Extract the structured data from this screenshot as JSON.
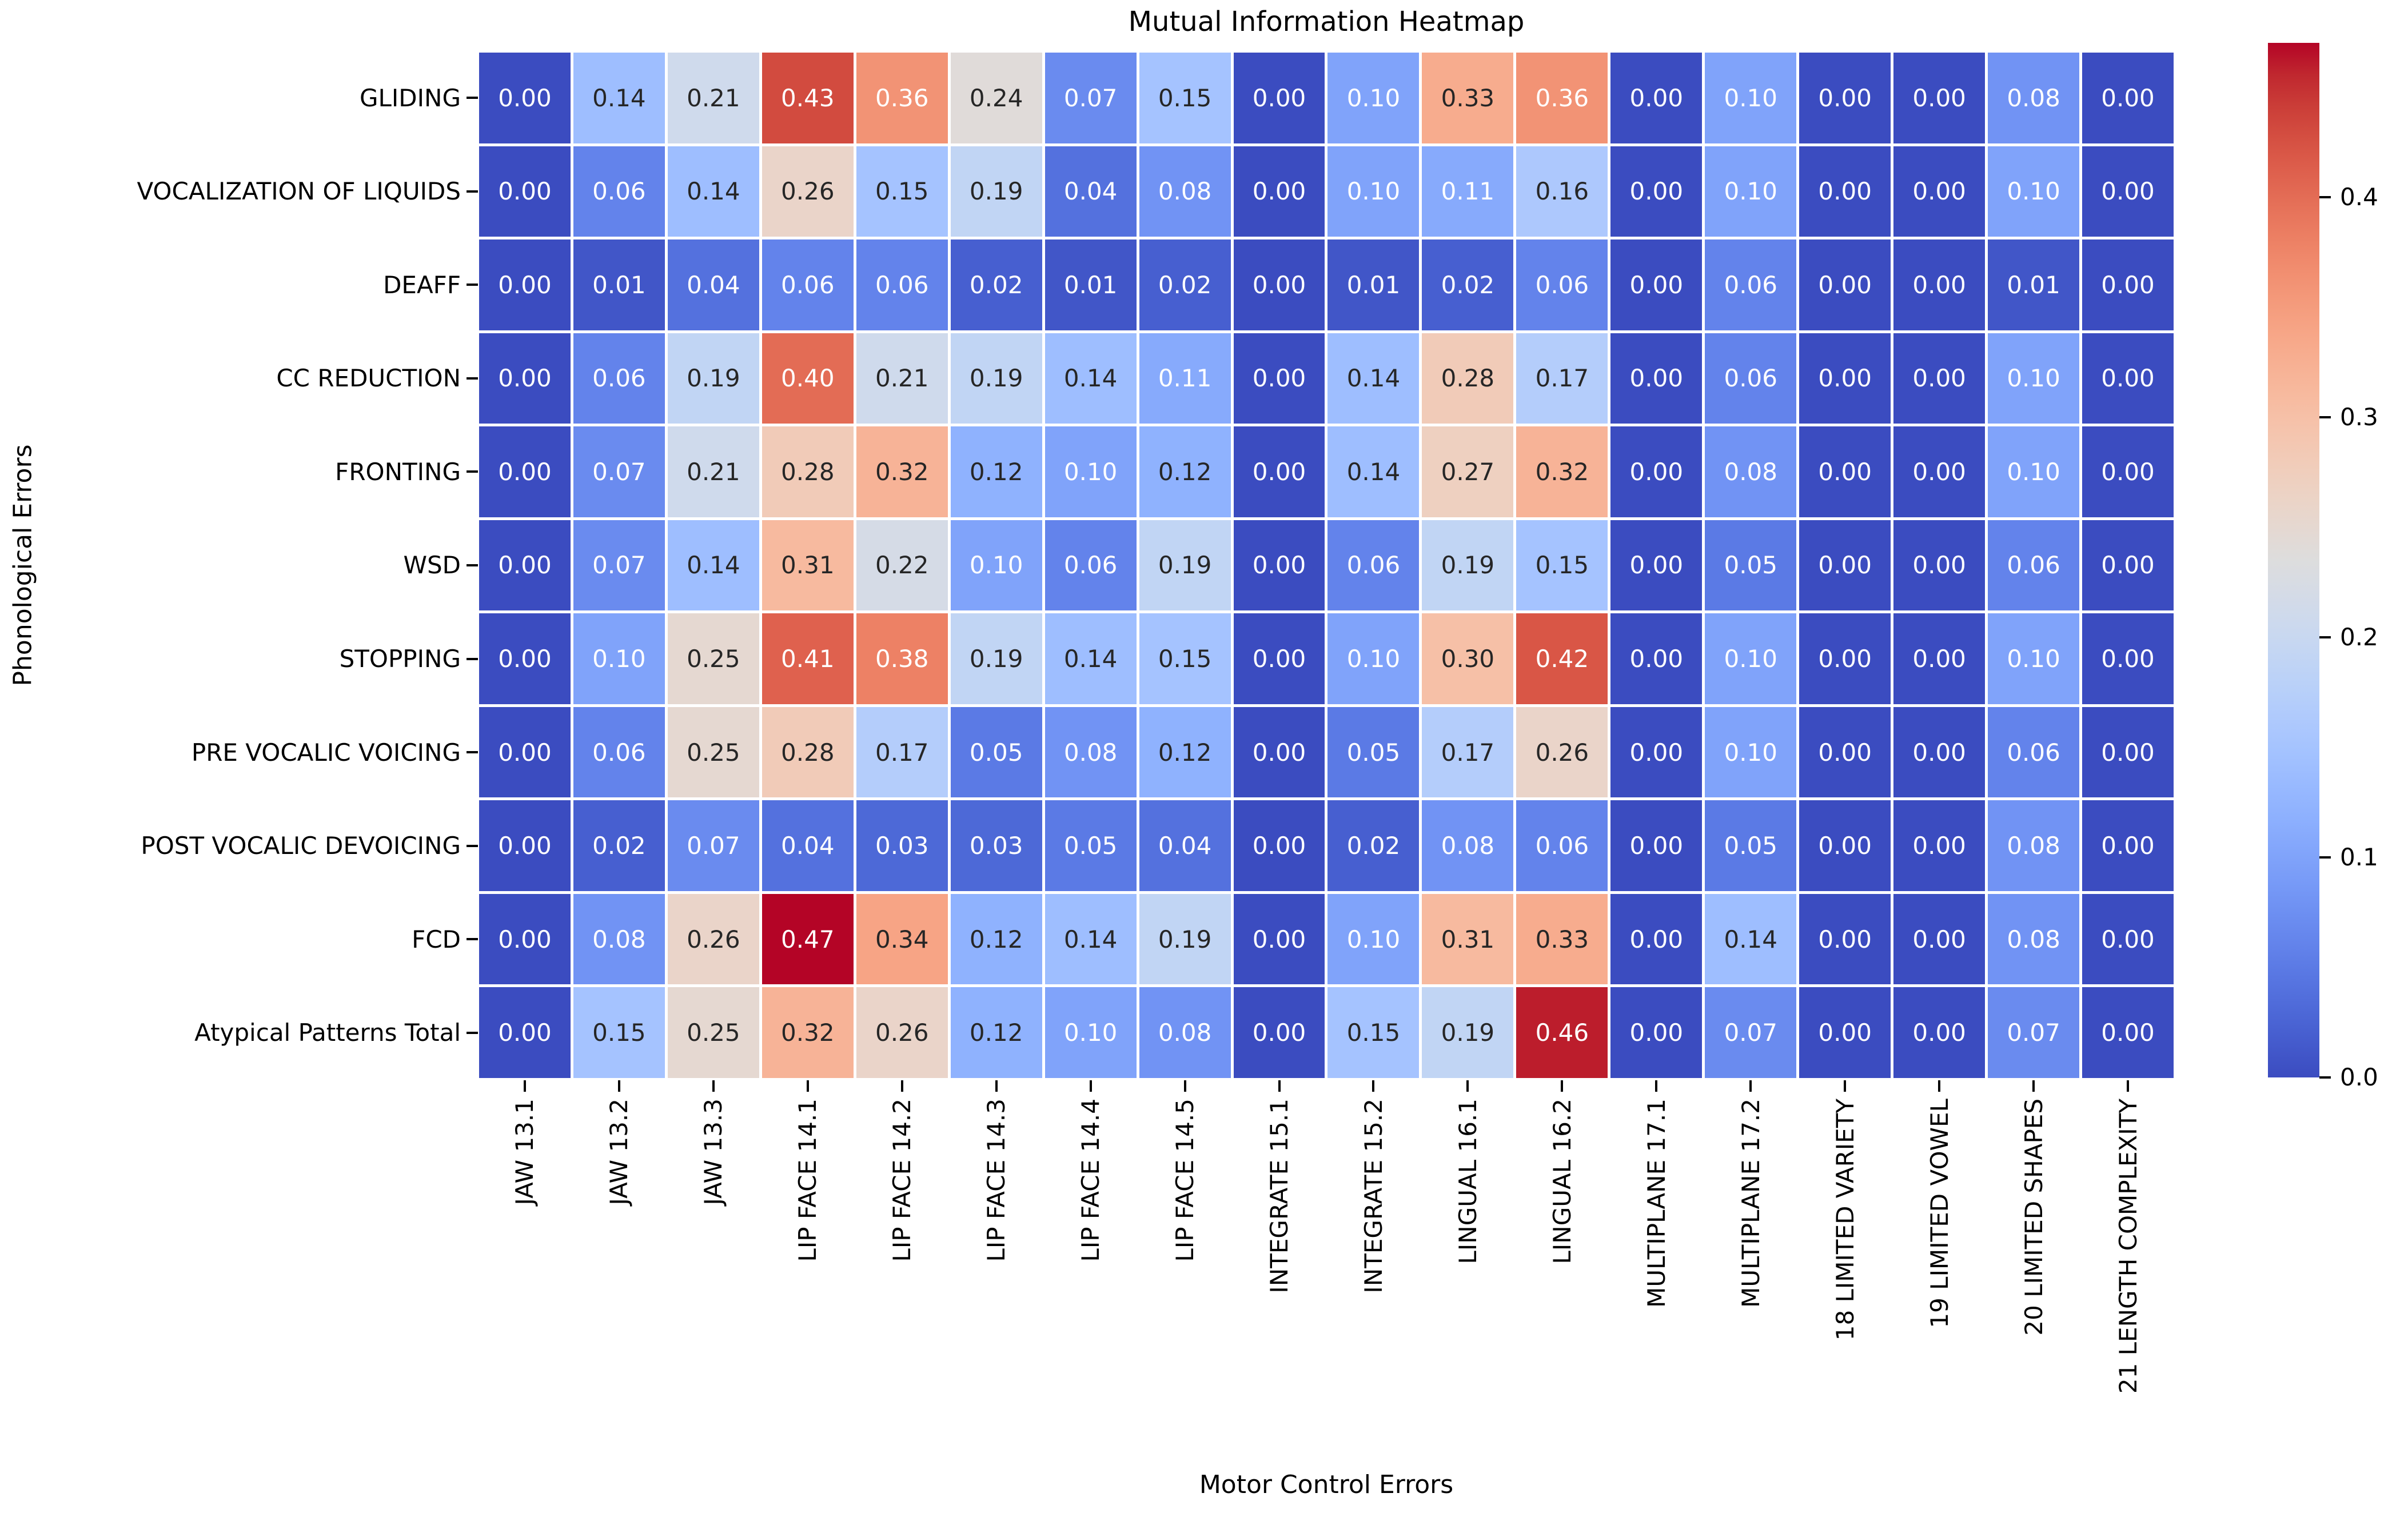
{
  "chart_data": {
    "type": "heatmap",
    "title": "Mutual Information Heatmap",
    "xlabel": "Motor Control Errors",
    "ylabel": "Phonological Errors",
    "columns": [
      "JAW 13.1",
      "JAW 13.2",
      "JAW 13.3",
      "LIP FACE 14.1",
      "LIP FACE 14.2",
      "LIP FACE 14.3",
      "LIP FACE 14.4",
      "LIP FACE 14.5",
      "INTEGRATE 15.1",
      "INTEGRATE 15.2",
      "LINGUAL 16.1",
      "LINGUAL 16.2",
      "MULTIPLANE 17.1",
      "MULTIPLANE 17.2",
      "18 LIMITED VARIETY",
      "19 LIMITED VOWEL",
      "20 LIMITED SHAPES",
      "21 LENGTH COMPLEXITY"
    ],
    "rows": [
      "GLIDING",
      "VOCALIZATION OF LIQUIDS",
      "DEAFF",
      "CC REDUCTION",
      "FRONTING",
      "WSD",
      "STOPPING",
      "PRE VOCALIC VOICING",
      "POST VOCALIC DEVOICING",
      "FCD",
      "Atypical Patterns Total"
    ],
    "values": [
      [
        0.0,
        0.14,
        0.21,
        0.43,
        0.36,
        0.24,
        0.07,
        0.15,
        0.0,
        0.1,
        0.33,
        0.36,
        0.0,
        0.1,
        0.0,
        0.0,
        0.08,
        0.0
      ],
      [
        0.0,
        0.06,
        0.14,
        0.26,
        0.15,
        0.19,
        0.04,
        0.08,
        0.0,
        0.1,
        0.11,
        0.16,
        0.0,
        0.1,
        0.0,
        0.0,
        0.1,
        0.0
      ],
      [
        0.0,
        0.01,
        0.04,
        0.06,
        0.06,
        0.02,
        0.01,
        0.02,
        0.0,
        0.01,
        0.02,
        0.06,
        0.0,
        0.06,
        0.0,
        0.0,
        0.01,
        0.0
      ],
      [
        0.0,
        0.06,
        0.19,
        0.4,
        0.21,
        0.19,
        0.14,
        0.11,
        0.0,
        0.14,
        0.28,
        0.17,
        0.0,
        0.06,
        0.0,
        0.0,
        0.1,
        0.0
      ],
      [
        0.0,
        0.07,
        0.21,
        0.28,
        0.32,
        0.12,
        0.1,
        0.12,
        0.0,
        0.14,
        0.27,
        0.32,
        0.0,
        0.08,
        0.0,
        0.0,
        0.1,
        0.0
      ],
      [
        0.0,
        0.07,
        0.14,
        0.31,
        0.22,
        0.1,
        0.06,
        0.19,
        0.0,
        0.06,
        0.19,
        0.15,
        0.0,
        0.05,
        0.0,
        0.0,
        0.06,
        0.0
      ],
      [
        0.0,
        0.1,
        0.25,
        0.41,
        0.38,
        0.19,
        0.14,
        0.15,
        0.0,
        0.1,
        0.3,
        0.42,
        0.0,
        0.1,
        0.0,
        0.0,
        0.1,
        0.0
      ],
      [
        0.0,
        0.06,
        0.25,
        0.28,
        0.17,
        0.05,
        0.08,
        0.12,
        0.0,
        0.05,
        0.17,
        0.26,
        0.0,
        0.1,
        0.0,
        0.0,
        0.06,
        0.0
      ],
      [
        0.0,
        0.02,
        0.07,
        0.04,
        0.03,
        0.03,
        0.05,
        0.04,
        0.0,
        0.02,
        0.08,
        0.06,
        0.0,
        0.05,
        0.0,
        0.0,
        0.08,
        0.0
      ],
      [
        0.0,
        0.08,
        0.26,
        0.47,
        0.34,
        0.12,
        0.14,
        0.19,
        0.0,
        0.1,
        0.31,
        0.33,
        0.0,
        0.14,
        0.0,
        0.0,
        0.08,
        0.0
      ],
      [
        0.0,
        0.15,
        0.25,
        0.32,
        0.26,
        0.12,
        0.1,
        0.08,
        0.0,
        0.15,
        0.19,
        0.46,
        0.0,
        0.07,
        0.0,
        0.0,
        0.07,
        0.0
      ]
    ],
    "vmin": 0.0,
    "vmax": 0.47,
    "colorbar_ticks": [
      0.0,
      0.1,
      0.2,
      0.3,
      0.4
    ],
    "colormap": "coolwarm",
    "colormap_stops": [
      "#3b4cc0",
      "#445acc",
      "#4d68d7",
      "#5775e1",
      "#6282ea",
      "#6c8ef1",
      "#779af7",
      "#82a5fb",
      "#8db0fe",
      "#98b9ff",
      "#a3c2ff",
      "#aec9fd",
      "#b8d0f9",
      "#c2d5f4",
      "#ccd9ee",
      "#d5dbe6",
      "#dddddd",
      "#e5d8d1",
      "#ecd3c5",
      "#f1ccb9",
      "#f5c4ad",
      "#f7bba0",
      "#f7b194",
      "#f7a687",
      "#f49a7b",
      "#f18d6f",
      "#ec7f63",
      "#e57058",
      "#de604d",
      "#d55042",
      "#cb3e38",
      "#c0282f",
      "#b40426"
    ],
    "grid_line_color": "#ffffff",
    "annotation_text_light": "#ffffff",
    "annotation_text_dark": "#262626",
    "legend_position": "right"
  }
}
